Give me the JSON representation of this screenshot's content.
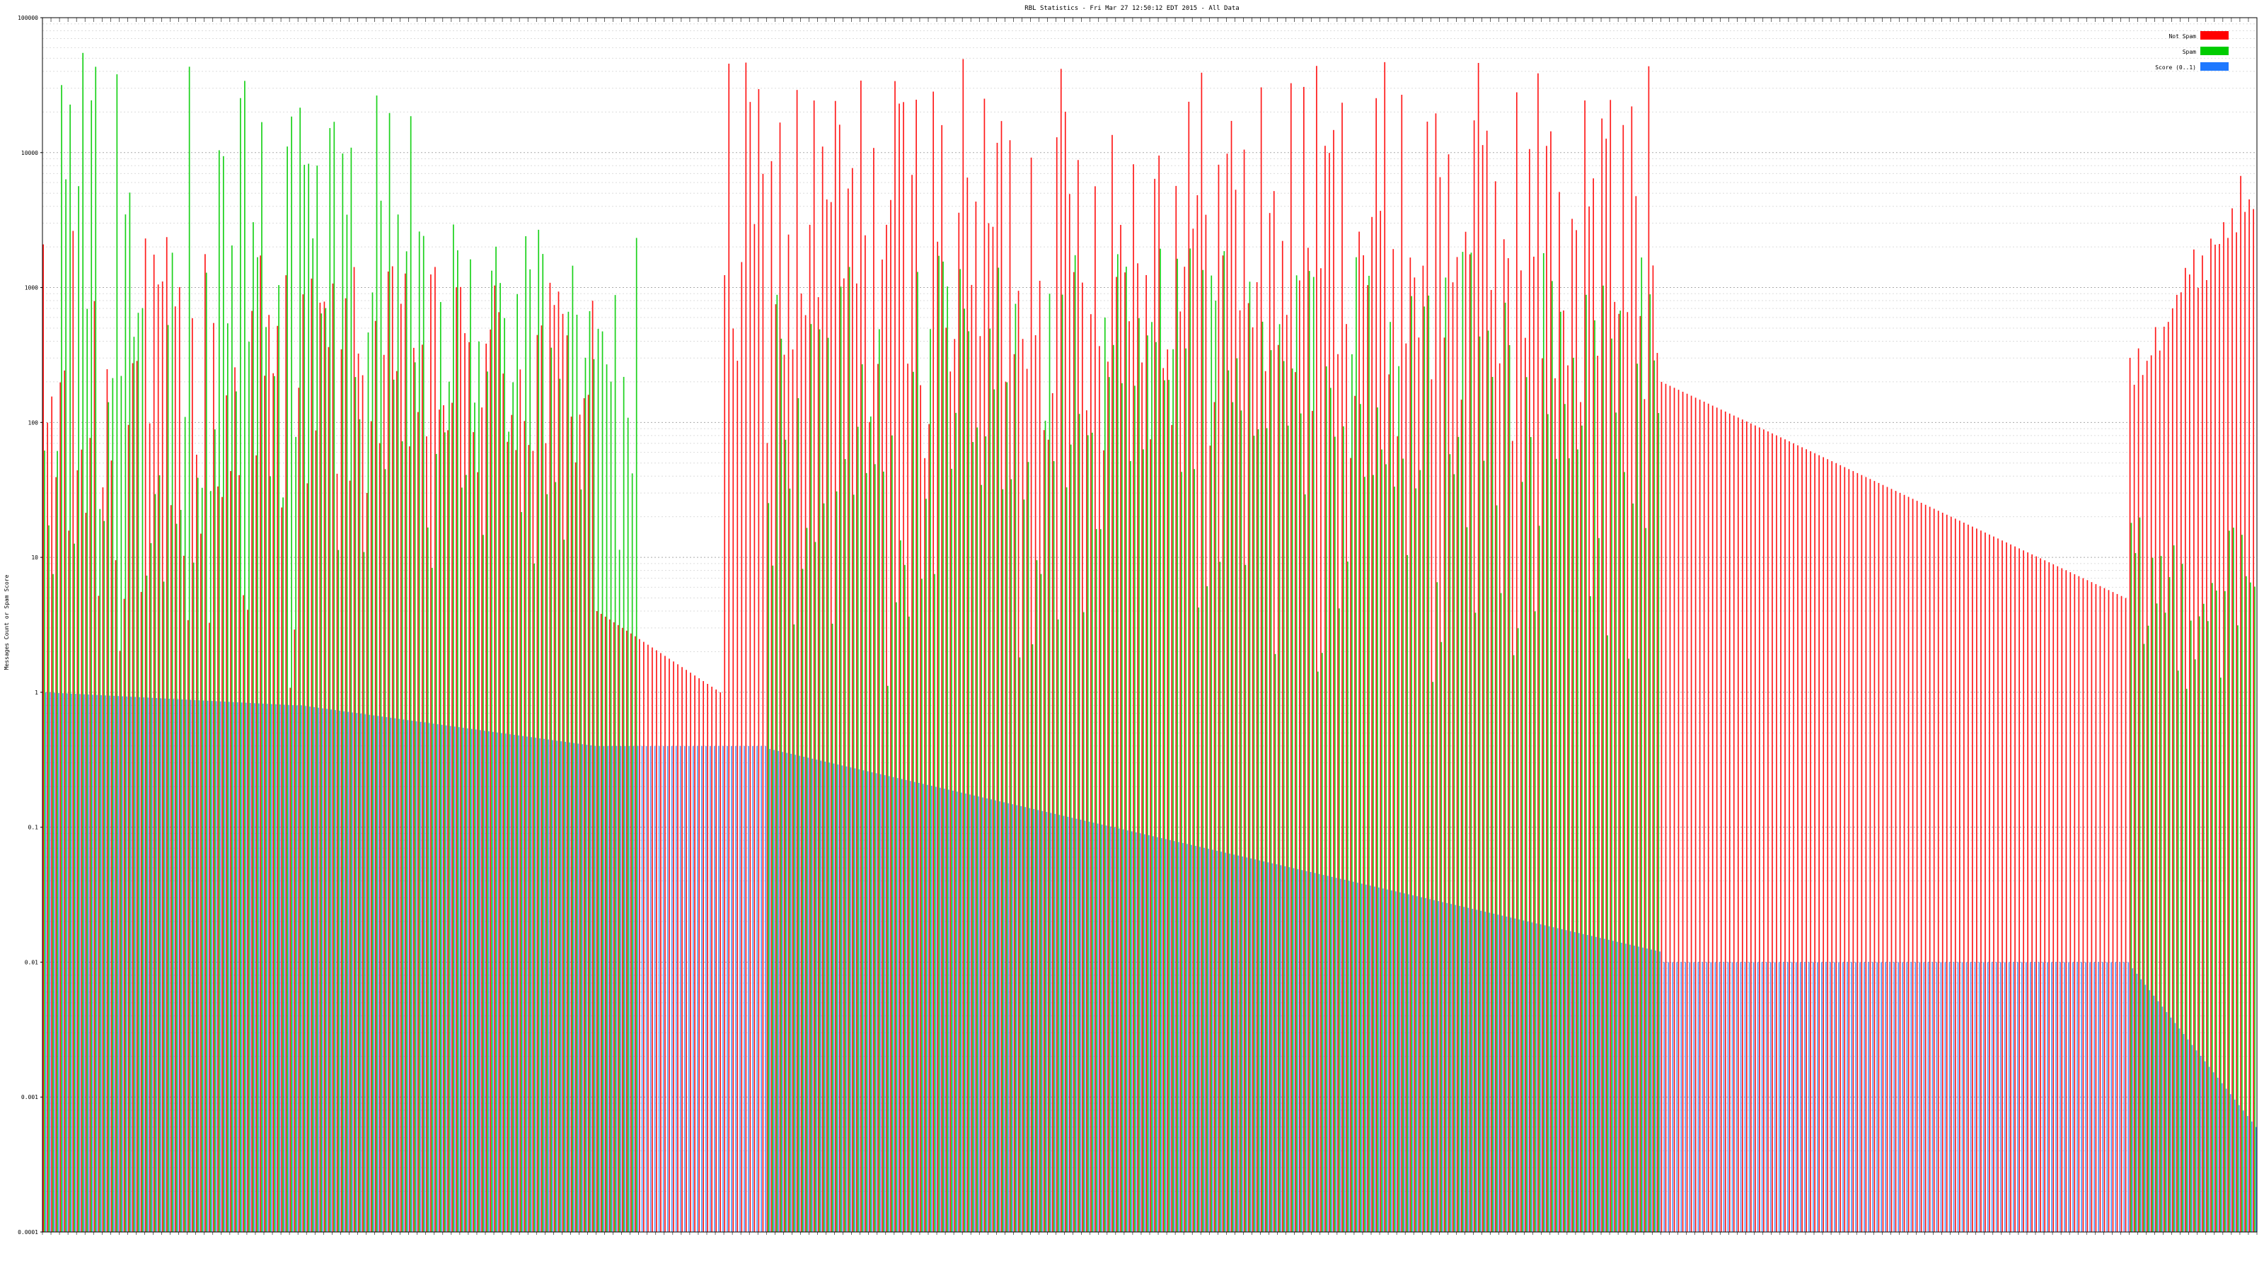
{
  "chart_data": {
    "type": "bar",
    "title": "RBL Statistics - Fri Mar 27 12:50:12 EDT 2015 - All Data",
    "ylabel": "Messages Count or Spam Score",
    "xlabel": "",
    "yscale": "log",
    "ylim": [
      0.0001,
      100000
    ],
    "y_ticks": [
      "0.0001",
      "0.001",
      "0.01",
      "0.1",
      "1",
      "10",
      "100",
      "1000",
      "10000",
      "100000"
    ],
    "grid": true,
    "legend_position": "top-right",
    "category_count": 520,
    "series": [
      {
        "name": "Not Spam",
        "color": "#ff0000",
        "segments": [
          {
            "from": 0,
            "to": 60,
            "lo": 1,
            "hi": 3000,
            "mode": "wild"
          },
          {
            "from": 60,
            "to": 130,
            "lo": 20,
            "hi": 1500,
            "mode": "wild"
          },
          {
            "from": 130,
            "to": 160,
            "lo": 1,
            "hi": 4,
            "mode": "descend"
          },
          {
            "from": 160,
            "to": 380,
            "lo": 50,
            "hi": 50000,
            "mode": "wild"
          },
          {
            "from": 380,
            "to": 490,
            "lo": 5,
            "hi": 200,
            "mode": "descend"
          },
          {
            "from": 490,
            "to": 520,
            "lo": 250,
            "hi": 6000,
            "mode": "ascend"
          }
        ]
      },
      {
        "name": "Spam",
        "color": "#00cc00",
        "segments": [
          {
            "from": 0,
            "to": 40,
            "lo": 5,
            "hi": 60000,
            "mode": "wild"
          },
          {
            "from": 40,
            "to": 90,
            "lo": 10,
            "hi": 60000,
            "mode": "wild"
          },
          {
            "from": 90,
            "to": 140,
            "lo": 5,
            "hi": 3000,
            "mode": "wild"
          },
          {
            "from": 140,
            "to": 170,
            "lo": 0.0001,
            "hi": 0.0001,
            "mode": "flat"
          },
          {
            "from": 170,
            "to": 380,
            "lo": 1,
            "hi": 2000,
            "mode": "wild"
          },
          {
            "from": 380,
            "to": 490,
            "lo": 0.0001,
            "hi": 0.0001,
            "mode": "flat"
          },
          {
            "from": 490,
            "to": 520,
            "lo": 1,
            "hi": 20,
            "mode": "wild"
          }
        ]
      },
      {
        "name": "Score (0..1)",
        "color": "#1e78ff",
        "segments": [
          {
            "from": 0,
            "to": 60,
            "lo": 0.8,
            "hi": 1,
            "mode": "descend"
          },
          {
            "from": 60,
            "to": 130,
            "lo": 0.4,
            "hi": 0.8,
            "mode": "descend"
          },
          {
            "from": 130,
            "to": 170,
            "lo": 0.4,
            "hi": 0.4,
            "mode": "flat"
          },
          {
            "from": 170,
            "to": 380,
            "lo": 0.012,
            "hi": 0.38,
            "mode": "descend"
          },
          {
            "from": 380,
            "to": 490,
            "lo": 0.01,
            "hi": 0.01,
            "mode": "flat"
          },
          {
            "from": 490,
            "to": 520,
            "lo": 0.0006,
            "hi": 0.009,
            "mode": "descend"
          }
        ]
      }
    ]
  },
  "legend": {
    "items": [
      {
        "label": "Not Spam",
        "color": "#ff0000"
      },
      {
        "label": "Spam",
        "color": "#00cc00"
      },
      {
        "label": "Score (0..1)",
        "color": "#1e78ff"
      }
    ]
  }
}
